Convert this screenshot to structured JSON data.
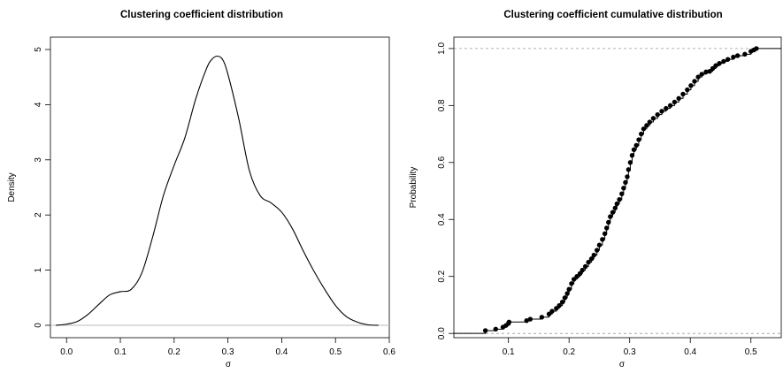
{
  "chart_data": [
    {
      "type": "line",
      "title": "Clustering coefficient distribution",
      "xlabel": "σ",
      "ylabel": "Density",
      "xlim": [
        -0.03,
        0.6
      ],
      "ylim": [
        0,
        5
      ],
      "xticks": [
        0.0,
        0.1,
        0.2,
        0.3,
        0.4,
        0.5,
        0.6
      ],
      "xtick_labels": [
        "0.0",
        "0.1",
        "0.2",
        "0.3",
        "0.4",
        "0.5",
        "0.6"
      ],
      "yticks": [
        0,
        1,
        2,
        3,
        4,
        5
      ],
      "ytick_labels": [
        "0",
        "1",
        "2",
        "3",
        "4",
        "5"
      ],
      "grid": false,
      "baseline": 0,
      "series": [
        {
          "x": [
            -0.02,
            0.0,
            0.02,
            0.04,
            0.06,
            0.08,
            0.1,
            0.12,
            0.14,
            0.16,
            0.18,
            0.2,
            0.22,
            0.24,
            0.26,
            0.27,
            0.28,
            0.29,
            0.3,
            0.32,
            0.34,
            0.36,
            0.38,
            0.4,
            0.42,
            0.44,
            0.46,
            0.48,
            0.5,
            0.52,
            0.54,
            0.56,
            0.58
          ],
          "y": [
            0.0,
            0.02,
            0.07,
            0.2,
            0.38,
            0.55,
            0.61,
            0.65,
            0.95,
            1.6,
            2.35,
            2.9,
            3.4,
            4.1,
            4.65,
            4.82,
            4.88,
            4.82,
            4.55,
            3.75,
            2.8,
            2.35,
            2.22,
            2.05,
            1.75,
            1.35,
            0.98,
            0.65,
            0.36,
            0.16,
            0.06,
            0.01,
            0.0
          ]
        }
      ]
    },
    {
      "type": "scatter",
      "title": "Clustering coefficient cumulative distribution",
      "xlabel": "σ",
      "ylabel": "Probability",
      "xlim": [
        0.01,
        0.55
      ],
      "ylim": [
        -0.015,
        1.04
      ],
      "xticks": [
        0.1,
        0.2,
        0.3,
        0.4,
        0.5
      ],
      "xtick_labels": [
        "0.1",
        "0.2",
        "0.3",
        "0.4",
        "0.5"
      ],
      "yticks": [
        0.0,
        0.2,
        0.4,
        0.6,
        0.8,
        1.0
      ],
      "ytick_labels": [
        "0.0",
        "0.2",
        "0.4",
        "0.6",
        "0.8",
        "1.0"
      ],
      "grid": false,
      "reference_lines": [
        0,
        1
      ],
      "step": true,
      "cdf_points": [
        [
          0.062,
          0.01
        ],
        [
          0.079,
          0.015
        ],
        [
          0.091,
          0.022
        ],
        [
          0.096,
          0.028
        ],
        [
          0.1,
          0.035
        ],
        [
          0.101,
          0.04
        ],
        [
          0.13,
          0.045
        ],
        [
          0.136,
          0.05
        ],
        [
          0.155,
          0.057
        ],
        [
          0.167,
          0.068
        ],
        [
          0.172,
          0.078
        ],
        [
          0.179,
          0.088
        ],
        [
          0.184,
          0.098
        ],
        [
          0.189,
          0.11
        ],
        [
          0.193,
          0.125
        ],
        [
          0.197,
          0.14
        ],
        [
          0.2,
          0.155
        ],
        [
          0.204,
          0.175
        ],
        [
          0.208,
          0.19
        ],
        [
          0.213,
          0.2
        ],
        [
          0.218,
          0.21
        ],
        [
          0.222,
          0.222
        ],
        [
          0.227,
          0.235
        ],
        [
          0.232,
          0.25
        ],
        [
          0.237,
          0.262
        ],
        [
          0.241,
          0.275
        ],
        [
          0.246,
          0.292
        ],
        [
          0.25,
          0.31
        ],
        [
          0.255,
          0.33
        ],
        [
          0.259,
          0.35
        ],
        [
          0.262,
          0.37
        ],
        [
          0.265,
          0.39
        ],
        [
          0.268,
          0.41
        ],
        [
          0.272,
          0.425
        ],
        [
          0.276,
          0.44
        ],
        [
          0.279,
          0.455
        ],
        [
          0.283,
          0.47
        ],
        [
          0.287,
          0.49
        ],
        [
          0.29,
          0.51
        ],
        [
          0.293,
          0.53
        ],
        [
          0.296,
          0.55
        ],
        [
          0.298,
          0.575
        ],
        [
          0.301,
          0.6
        ],
        [
          0.304,
          0.625
        ],
        [
          0.307,
          0.645
        ],
        [
          0.311,
          0.66
        ],
        [
          0.315,
          0.68
        ],
        [
          0.319,
          0.7
        ],
        [
          0.323,
          0.718
        ],
        [
          0.328,
          0.73
        ],
        [
          0.333,
          0.742
        ],
        [
          0.339,
          0.755
        ],
        [
          0.346,
          0.768
        ],
        [
          0.353,
          0.78
        ],
        [
          0.36,
          0.79
        ],
        [
          0.367,
          0.8
        ],
        [
          0.374,
          0.812
        ],
        [
          0.381,
          0.825
        ],
        [
          0.388,
          0.84
        ],
        [
          0.395,
          0.855
        ],
        [
          0.401,
          0.87
        ],
        [
          0.407,
          0.885
        ],
        [
          0.413,
          0.9
        ],
        [
          0.419,
          0.91
        ],
        [
          0.426,
          0.918
        ],
        [
          0.432,
          0.92
        ],
        [
          0.437,
          0.93
        ],
        [
          0.442,
          0.94
        ],
        [
          0.448,
          0.948
        ],
        [
          0.455,
          0.955
        ],
        [
          0.462,
          0.962
        ],
        [
          0.471,
          0.97
        ],
        [
          0.478,
          0.975
        ],
        [
          0.49,
          0.98
        ],
        [
          0.5,
          0.99
        ],
        [
          0.505,
          0.995
        ],
        [
          0.509,
          1.0
        ]
      ]
    }
  ]
}
